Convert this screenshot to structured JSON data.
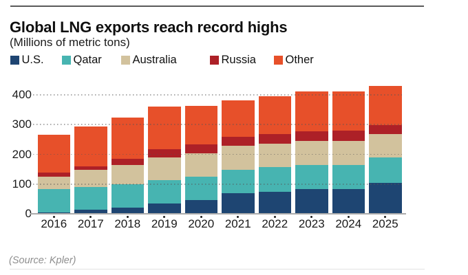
{
  "header": {
    "title": "Global LNG exports reach record highs",
    "subtitle": "(Millions of metric tons)"
  },
  "footer": {
    "source": "(Source: Kpler)"
  },
  "chart_data": {
    "type": "bar",
    "stacked": true,
    "title": "Global LNG exports reach record highs",
    "subtitle": "(Millions of metric tons)",
    "xlabel": "",
    "ylabel": "Millions of metric tons",
    "ylim": [
      0,
      450
    ],
    "yticks": [
      0,
      100,
      200,
      300,
      400
    ],
    "grid": "horizontal-dotted",
    "legend_position": "top",
    "categories": [
      "2016",
      "2017",
      "2018",
      "2019",
      "2020",
      "2021",
      "2022",
      "2023",
      "2024",
      "2025"
    ],
    "series": [
      {
        "name": "U.S.",
        "color": "#1e4572",
        "values": [
          5,
          14,
          22,
          35,
          47,
          70,
          75,
          84,
          84,
          105
        ]
      },
      {
        "name": "Qatar",
        "color": "#47b4b1",
        "values": [
          79,
          76,
          77,
          78,
          78,
          78,
          82,
          81,
          80,
          85
        ]
      },
      {
        "name": "Australia",
        "color": "#d2c29d",
        "values": [
          40,
          57,
          66,
          76,
          79,
          82,
          80,
          80,
          81,
          79
        ]
      },
      {
        "name": "Russia",
        "color": "#ad2027",
        "values": [
          14,
          12,
          19,
          28,
          30,
          28,
          32,
          32,
          34,
          30
        ]
      },
      {
        "name": "Other",
        "color": "#e7502a",
        "values": [
          129,
          135,
          140,
          143,
          130,
          124,
          127,
          135,
          133,
          131
        ]
      }
    ],
    "totals": [
      267,
      294,
      324,
      360,
      364,
      382,
      396,
      412,
      412,
      430
    ],
    "legend_x_positions": [
      15,
      90,
      176,
      305,
      398
    ]
  }
}
